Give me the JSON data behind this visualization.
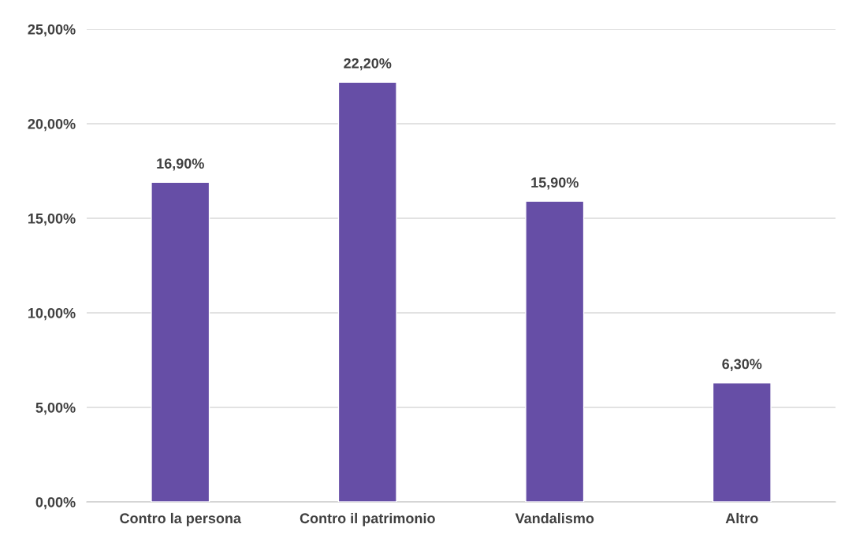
{
  "chart_data": {
    "type": "bar",
    "categories": [
      "Contro la persona",
      "Contro il patrimonio",
      "Vandalismo",
      "Altro"
    ],
    "values": [
      16.9,
      22.2,
      15.9,
      6.3
    ],
    "color": "#664ea6",
    "value_labels": [
      "16,90%",
      "22,20%",
      "15,90%",
      "6,30%"
    ],
    "ylim": [
      0,
      25
    ],
    "yticks": [
      {
        "value": 0,
        "label": "0,00%"
      },
      {
        "value": 5,
        "label": "5,00%"
      },
      {
        "value": 10,
        "label": "10,00%"
      },
      {
        "value": 15,
        "label": "15,00%"
      },
      {
        "value": 20,
        "label": "20,00%"
      },
      {
        "value": 25,
        "label": "25,00%"
      }
    ],
    "grid": "y",
    "legend": false
  }
}
